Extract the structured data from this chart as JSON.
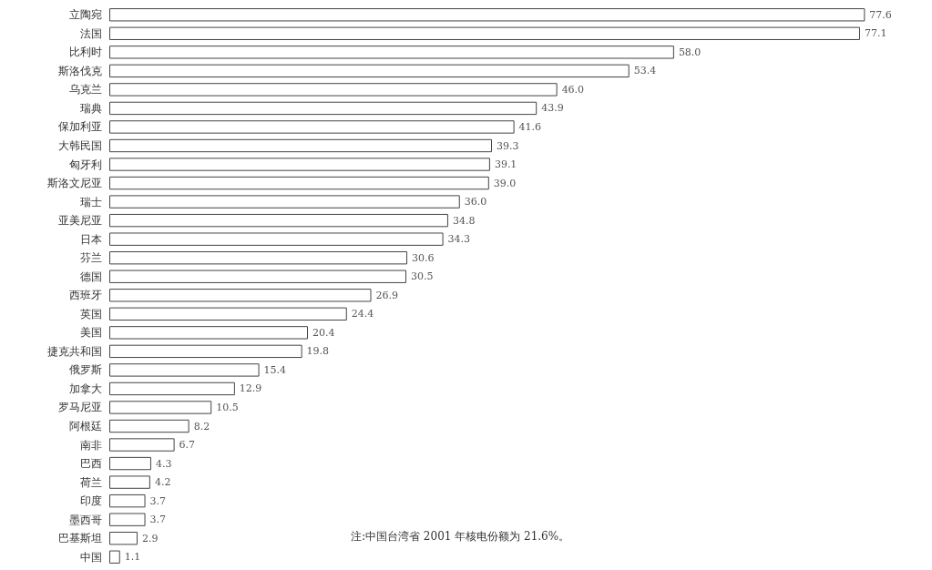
{
  "chart_data": {
    "type": "bar",
    "orientation": "horizontal",
    "color": "#ffffff",
    "categories": [
      "立陶宛",
      "法国",
      "比利时",
      "斯洛伐克",
      "乌克兰",
      "瑞典",
      "保加利亚",
      "大韩民国",
      "匈牙利",
      "斯洛文尼亚",
      "瑞士",
      "亚美尼亚",
      "日本",
      "芬兰",
      "德国",
      "西班牙",
      "英国",
      "美国",
      "捷克共和国",
      "俄罗斯",
      "加拿大",
      "罗马尼亚",
      "阿根廷",
      "南非",
      "巴西",
      "荷兰",
      "印度",
      "墨西哥",
      "巴基斯坦",
      "中国"
    ],
    "values": [
      77.6,
      77.1,
      58.0,
      53.4,
      46.0,
      43.9,
      41.6,
      39.3,
      39.1,
      39.0,
      36.0,
      34.8,
      34.3,
      30.6,
      30.5,
      26.9,
      24.4,
      20.4,
      19.8,
      15.4,
      12.9,
      10.5,
      8.2,
      6.7,
      4.3,
      4.2,
      3.7,
      3.7,
      2.9,
      1.1
    ],
    "value_labels": [
      "77.6",
      "77.1",
      "58.0",
      "53.4",
      "46.0",
      "43.9",
      "41.6",
      "39.3",
      "39.1",
      "39.0",
      "36.0",
      "34.8",
      "34.3",
      "30.6",
      "30.5",
      "26.9",
      "24.4",
      "20.4",
      "19.8",
      "15.4",
      "12.9",
      "10.5",
      "8.2",
      "6.7",
      "4.3",
      "4.2",
      "3.7",
      "3.7",
      "2.9",
      "1.1"
    ],
    "annotations": [
      "注:中国台湾省 2001 年核电份额为 21.6%。"
    ]
  }
}
